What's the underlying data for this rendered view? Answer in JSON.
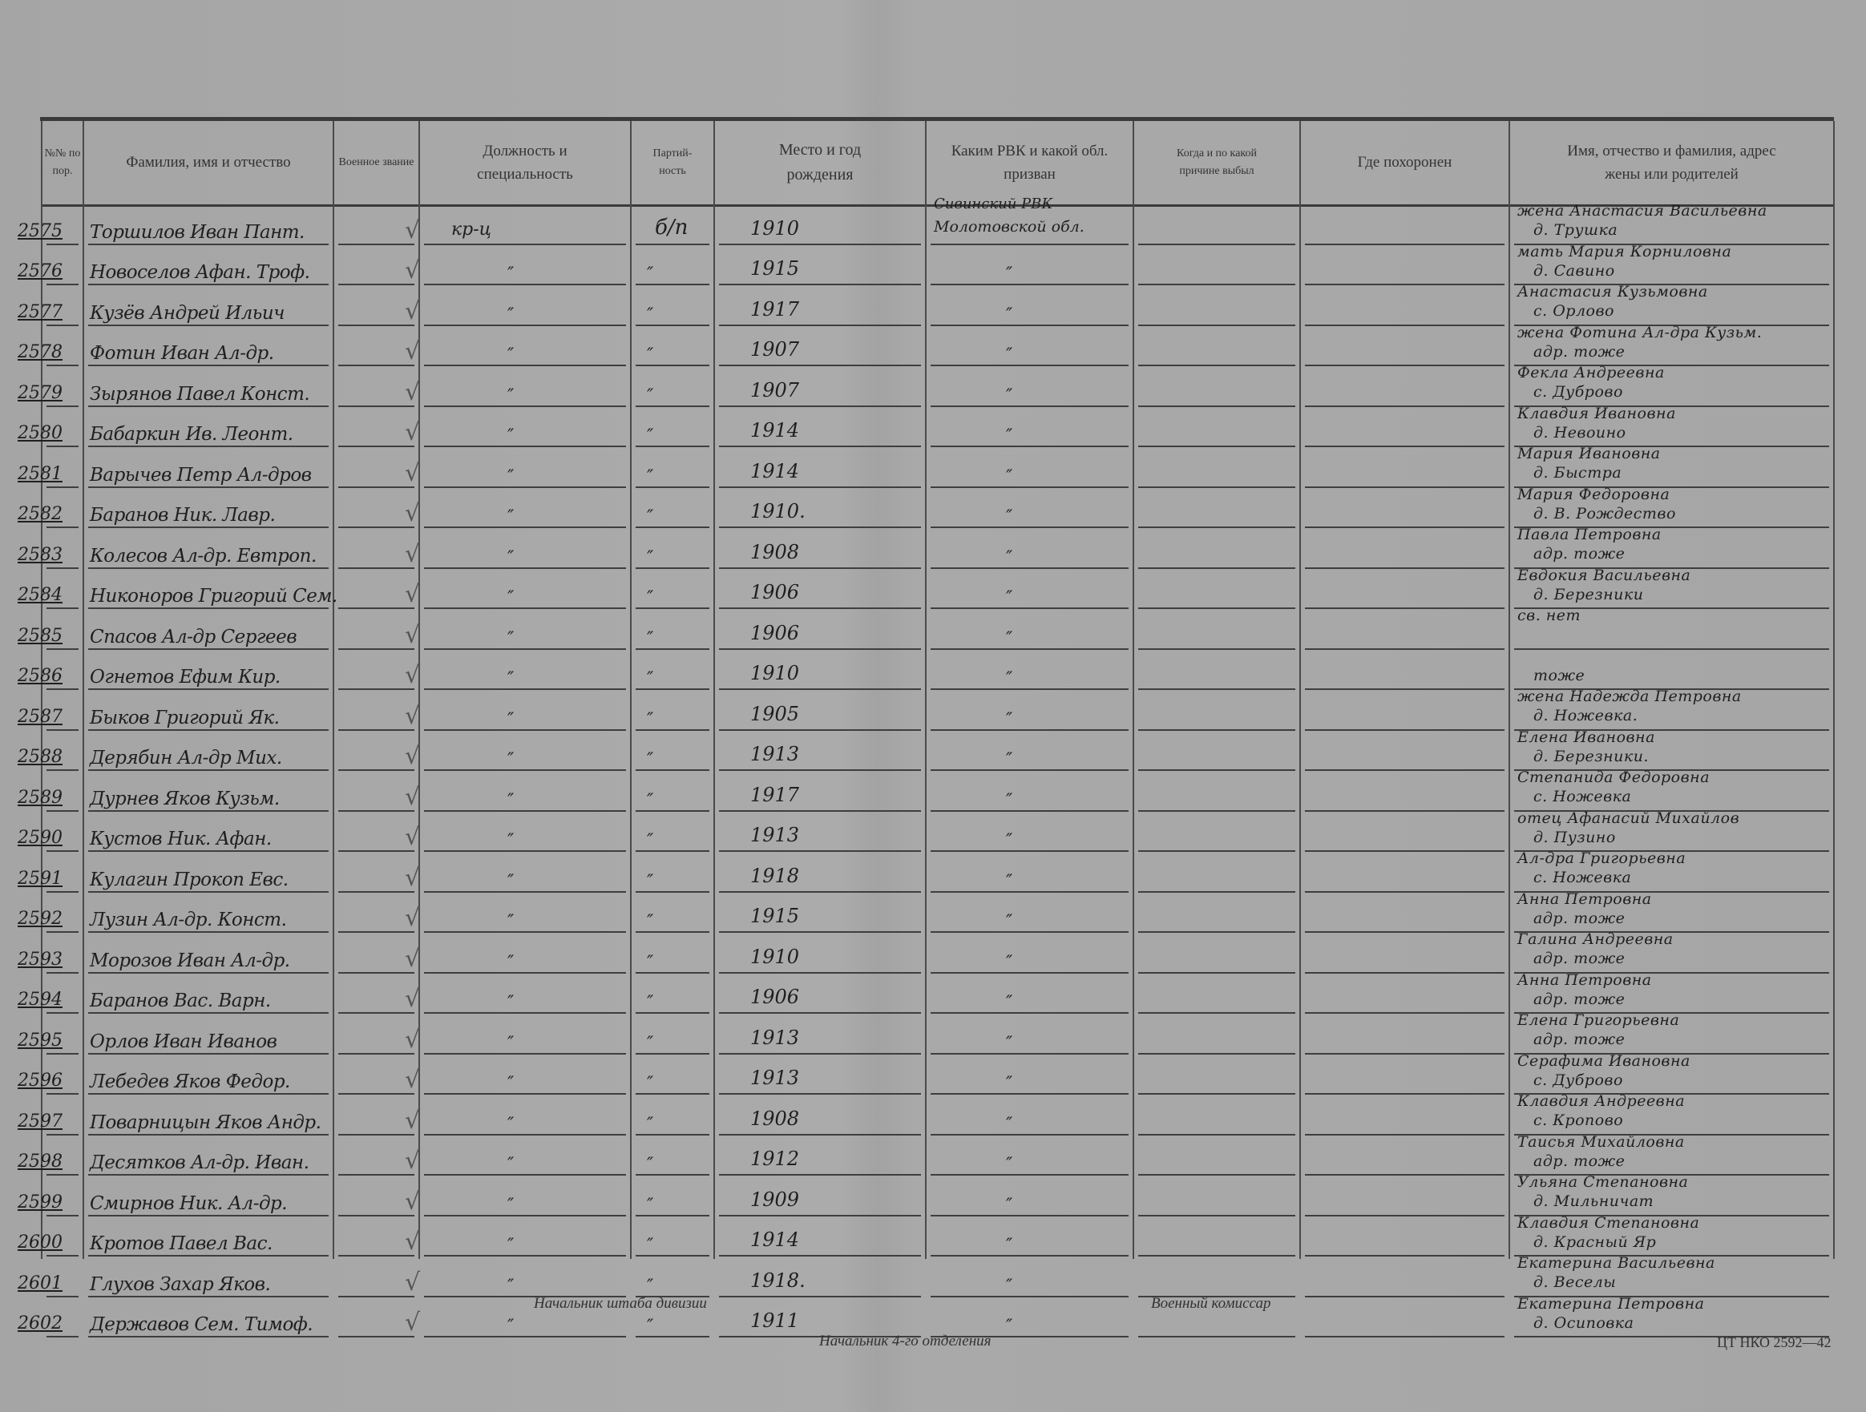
{
  "header": {
    "num": "№№ по пор.",
    "name": "Фамилия, имя и отчество",
    "rank": "Военное звание",
    "position": "Должность и специальность",
    "party": "Партий-ность",
    "birth": "Место и год рождения",
    "rvk": "Каким РВК и какой обл. призван",
    "when": "Когда и по какой причине выбыл",
    "buried": "Где похоронен",
    "relatives": "Имя, отчество и фамилия, адрес жены или родителей"
  },
  "rows": [
    {
      "num": "2575",
      "name": "Торшилов Иван Пант.",
      "position": "кр-ц",
      "party": "б/п",
      "year": "1910",
      "rvk": "Сивинский РВК",
      "rvk2": "Молотовской обл.",
      "rel1": "жена Анастасия Васильевна",
      "rel2": "д. Трушка"
    },
    {
      "num": "2576",
      "name": "Новоселов Афан. Троф.",
      "position": "″",
      "party": "″",
      "year": "1915",
      "rvk": "″",
      "rel1": "мать Мария Корниловна",
      "rel2": "д. Савино"
    },
    {
      "num": "2577",
      "name": "Кузёв Андрей Ильич",
      "position": "″",
      "party": "″",
      "year": "1917",
      "rvk": "″",
      "rel1": "Анастасия Кузьмовна",
      "rel2": "с. Орлово"
    },
    {
      "num": "2578",
      "name": "Фотин Иван Ал-др.",
      "position": "″",
      "party": "″",
      "year": "1907",
      "rvk": "″",
      "rel1": "жена Фотина Ал-дра Кузьм.",
      "rel2": "адр. тоже"
    },
    {
      "num": "2579",
      "name": "Зырянов Павел Конст.",
      "position": "″",
      "party": "″",
      "year": "1907",
      "rvk": "″",
      "rel1": "Фекла Андреевна",
      "rel2": "с. Дуброво"
    },
    {
      "num": "2580",
      "name": "Бабаркин Ив. Леонт.",
      "position": "″",
      "party": "″",
      "year": "1914",
      "rvk": "″",
      "rel1": "Клавдия Ивановна",
      "rel2": "д. Невоино"
    },
    {
      "num": "2581",
      "name": "Варычев Петр Ал-дров",
      "position": "″",
      "party": "″",
      "year": "1914",
      "rvk": "″",
      "rel1": "Мария Ивановна",
      "rel2": "д. Быстра"
    },
    {
      "num": "2582",
      "name": "Баранов Ник. Лавр.",
      "position": "″",
      "party": "″",
      "year": "1910.",
      "rvk": "″",
      "rel1": "Мария Федоровна",
      "rel2": "д. В. Рождество"
    },
    {
      "num": "2583",
      "name": "Колесов Ал-др. Евтроп.",
      "position": "″",
      "party": "″",
      "year": "1908",
      "rvk": "″",
      "rel1": "Павла Петровна",
      "rel2": "адр. тоже"
    },
    {
      "num": "2584",
      "name": "Никоноров Григорий Сем.",
      "position": "″",
      "party": "″",
      "year": "1906",
      "rvk": "″",
      "rel1": "Евдокия Васильевна",
      "rel2": "д. Березники"
    },
    {
      "num": "2585",
      "name": "Спасов Ал-др Сергеев",
      "position": "″",
      "party": "″",
      "year": "1906",
      "rvk": "″",
      "rel1": "св. нет",
      "rel2": ""
    },
    {
      "num": "2586",
      "name": "Огнетов Ефим Кир.",
      "position": "″",
      "party": "″",
      "year": "1910",
      "rvk": "″",
      "rel1": "",
      "rel2": "тоже"
    },
    {
      "num": "2587",
      "name": "Быков Григорий Як.",
      "position": "″",
      "party": "″",
      "year": "1905",
      "rvk": "″",
      "rel1": "жена Надежда Петровна",
      "rel2": "д. Ножевка."
    },
    {
      "num": "2588",
      "name": "Дерябин Ал-др Мих.",
      "position": "″",
      "party": "″",
      "year": "1913",
      "rvk": "″",
      "rel1": "Елена Ивановна",
      "rel2": "д. Березники."
    },
    {
      "num": "2589",
      "name": "Дурнев Яков Кузьм.",
      "position": "″",
      "party": "″",
      "year": "1917",
      "rvk": "″",
      "rel1": "Степанида Федоровна",
      "rel2": "с. Ножевка"
    },
    {
      "num": "2590",
      "name": "Кустов Ник. Афан.",
      "position": "″",
      "party": "″",
      "year": "1913",
      "rvk": "″",
      "rel1": "отец Афанасий Михайлов",
      "rel2": "д. Пузино"
    },
    {
      "num": "2591",
      "name": "Кулагин Прокоп Евс.",
      "position": "″",
      "party": "″",
      "year": "1918",
      "rvk": "″",
      "rel1": "Ал-дра Григорьевна",
      "rel2": "с. Ножевка"
    },
    {
      "num": "2592",
      "name": "Лузин Ал-др. Конст.",
      "position": "″",
      "party": "″",
      "year": "1915",
      "rvk": "″",
      "rel1": "Анна Петровна",
      "rel2": "адр. тоже"
    },
    {
      "num": "2593",
      "name": "Морозов Иван Ал-др.",
      "position": "″",
      "party": "″",
      "year": "1910",
      "rvk": "″",
      "rel1": "Галина Андреевна",
      "rel2": "адр. тоже"
    },
    {
      "num": "2594",
      "name": "Баранов Вас. Варн.",
      "position": "″",
      "party": "″",
      "year": "1906",
      "rvk": "″",
      "rel1": "Анна Петровна",
      "rel2": "адр. тоже"
    },
    {
      "num": "2595",
      "name": "Орлов Иван Иванов",
      "position": "″",
      "party": "″",
      "year": "1913",
      "rvk": "″",
      "rel1": "Елена Григорьевна",
      "rel2": "адр. тоже"
    },
    {
      "num": "2596",
      "name": "Лебедев Яков Федор.",
      "position": "″",
      "party": "″",
      "year": "1913",
      "rvk": "″",
      "rel1": "Серафима Ивановна",
      "rel2": "с. Дуброво"
    },
    {
      "num": "2597",
      "name": "Поварницын Яков Андр.",
      "position": "″",
      "party": "″",
      "year": "1908",
      "rvk": "″",
      "rel1": "Клавдия Андреевна",
      "rel2": "с. Кропово"
    },
    {
      "num": "2598",
      "name": "Десятков Ал-др. Иван.",
      "position": "″",
      "party": "″",
      "year": "1912",
      "rvk": "″",
      "rel1": "Таисья Михайловна",
      "rel2": "адр. тоже"
    },
    {
      "num": "2599",
      "name": "Смирнов Ник. Ал-др.",
      "position": "″",
      "party": "″",
      "year": "1909",
      "rvk": "″",
      "rel1": "Ульяна Степановна",
      "rel2": "д. Мильничат"
    },
    {
      "num": "2600",
      "name": "Кротов Павел Вас.",
      "position": "″",
      "party": "″",
      "year": "1914",
      "rvk": "″",
      "rel1": "Клавдия Степановна",
      "rel2": "д. Красный Яр"
    },
    {
      "num": "2601",
      "name": "Глухов Захар Яков.",
      "position": "″",
      "party": "″",
      "year": "1918.",
      "rvk": "″",
      "rel1": "Екатерина Васильевна",
      "rel2": "д. Веселы"
    },
    {
      "num": "2602",
      "name": "Державов Сем. Тимоф.",
      "position": "″",
      "party": "″",
      "year": "1911",
      "rvk": "″",
      "rel1": "Екатерина Петровна",
      "rel2": "д. Осиповка"
    }
  ],
  "footer": {
    "chief_of_staff": "Начальник штаба дивизии",
    "commissar": "Военный комиссар",
    "section_chief": "Начальник 4-го отделения",
    "form_code": "ЦТ НКО 2592—42"
  }
}
